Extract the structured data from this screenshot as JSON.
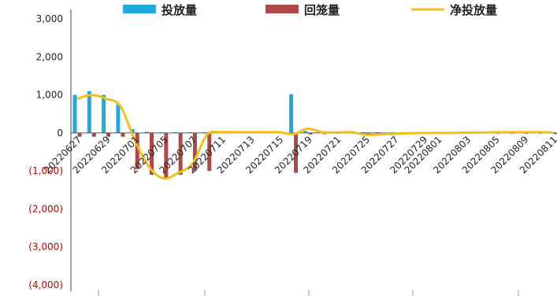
{
  "chart_data": {
    "type": "bar",
    "title": "",
    "xlabel": "",
    "ylabel": "",
    "ylim": [
      -4000,
      3000
    ],
    "yticks": [
      3000,
      2000,
      1000,
      0,
      -1000,
      -2000,
      -3000,
      -4000
    ],
    "yticklabels": [
      "3,000",
      "2,000",
      "1,000",
      "0",
      "(1,000)",
      "(2,000)",
      "(3,000)",
      "(4,000)"
    ],
    "negative_tick_color": "#c00000",
    "positive_tick_color": "#222222",
    "grid": false,
    "legend_position": "top",
    "categories": [
      "20220627",
      "20220628",
      "20220629",
      "20220630",
      "20220701",
      "20220704",
      "20220705",
      "20220706",
      "20220707",
      "20220708",
      "20220711",
      "20220712",
      "20220713",
      "20220714",
      "20220715",
      "20220718",
      "20220719",
      "20220720",
      "20220721",
      "20220722",
      "20220725",
      "20220726",
      "20220727",
      "20220728",
      "20220729",
      "20220801",
      "20220802",
      "20220803",
      "20220804",
      "20220805",
      "20220808",
      "20220809",
      "20220810",
      "20220811"
    ],
    "xtick_labels": [
      "20220627",
      "20220629",
      "20220701",
      "20220705",
      "20220707",
      "20220711",
      "20220713",
      "20220715",
      "20220719",
      "20220721",
      "20220725",
      "20220727",
      "20220729",
      "20220801",
      "20220803",
      "20220805",
      "20220809",
      "20220811"
    ],
    "series": [
      {
        "name": "投放量",
        "kind": "bar",
        "color": "#1fa9e1",
        "values": [
          1000,
          1100,
          1000,
          750,
          100,
          30,
          20,
          20,
          20,
          20,
          20,
          20,
          20,
          20,
          20,
          1020,
          50,
          30,
          20,
          20,
          20,
          20,
          20,
          20,
          20,
          20,
          20,
          20,
          20,
          20,
          20,
          20,
          20,
          20
        ]
      },
      {
        "name": "回笼量",
        "kind": "bar",
        "color": "#b04848",
        "values": [
          -100,
          -100,
          -100,
          -100,
          -950,
          -1100,
          -1200,
          -1100,
          -1000,
          -1000,
          0,
          0,
          0,
          0,
          0,
          -1050,
          -40,
          -30,
          -20,
          -20,
          -30,
          -50,
          -40,
          -20,
          -20,
          -20,
          -20,
          -20,
          -20,
          -20,
          -20,
          -20,
          -20,
          -30
        ]
      },
      {
        "name": "净投放量",
        "kind": "line",
        "color": "#f2c01a",
        "values": [
          900,
          1000,
          900,
          700,
          -200,
          -900,
          -1200,
          -1050,
          -800,
          -50,
          20,
          20,
          20,
          20,
          20,
          -30,
          110,
          20,
          10,
          20,
          -50,
          -40,
          -20,
          -10,
          0,
          0,
          0,
          10,
          10,
          20,
          20,
          20,
          20,
          10
        ]
      }
    ]
  }
}
